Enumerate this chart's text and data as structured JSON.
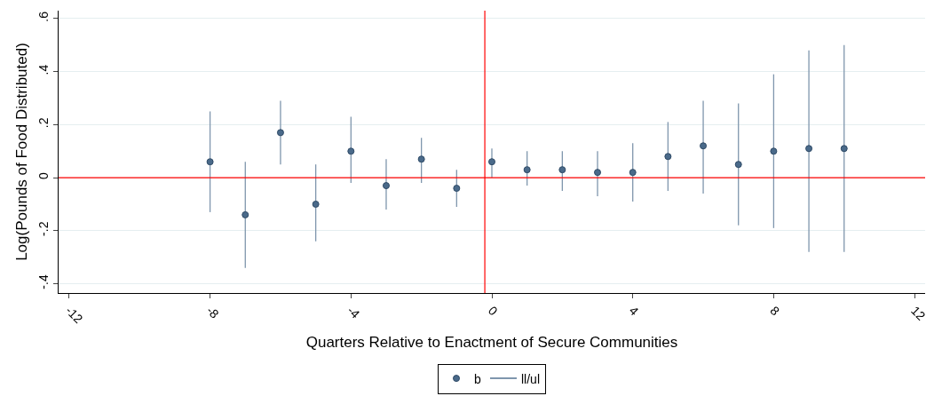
{
  "chart_data": {
    "type": "scatter",
    "xlabel": "Quarters Relative to Enactment of Secure Communities",
    "ylabel": "Log(Pounds of Food Distributed)",
    "x": [
      -8,
      -7,
      -6,
      -5,
      -4,
      -3,
      -2,
      -1,
      0,
      1,
      2,
      3,
      4,
      5,
      6,
      7,
      8,
      9,
      10
    ],
    "series": [
      {
        "name": "b",
        "color": "#4a6a8a",
        "values": [
          0.06,
          -0.14,
          0.17,
          -0.1,
          0.1,
          -0.03,
          0.07,
          -0.04,
          0.06,
          0.03,
          0.03,
          0.02,
          0.02,
          0.08,
          0.12,
          0.05,
          0.1,
          0.11,
          0.11
        ],
        "errors": [
          [
            -0.13,
            0.25
          ],
          [
            -0.34,
            0.06
          ],
          [
            0.05,
            0.29
          ],
          [
            -0.24,
            0.05
          ],
          [
            -0.02,
            0.23
          ],
          [
            -0.12,
            0.07
          ],
          [
            -0.02,
            0.15
          ],
          [
            -0.11,
            0.03
          ],
          [
            0.0,
            0.11
          ],
          [
            -0.03,
            0.1
          ],
          [
            -0.05,
            0.1
          ],
          [
            -0.07,
            0.1
          ],
          [
            -0.09,
            0.13
          ],
          [
            -0.05,
            0.21
          ],
          [
            -0.06,
            0.29
          ],
          [
            -0.18,
            0.28
          ],
          [
            -0.19,
            0.39
          ],
          [
            -0.28,
            0.48
          ],
          [
            -0.28,
            0.5
          ]
        ]
      },
      {
        "name": "ll/ul",
        "type": "line",
        "color": "#7f96ad",
        "values": [
          null,
          null,
          null,
          null,
          null,
          null,
          null,
          null,
          null,
          null,
          null,
          null,
          null,
          null,
          null,
          null,
          null,
          null,
          null
        ]
      }
    ],
    "xlim": [
      -12.3,
      12.3
    ],
    "xticks": [
      -12,
      -8,
      -4,
      0,
      4,
      8,
      12
    ],
    "ylim": [
      -0.435,
      0.63
    ],
    "yticks": [
      {
        "value": -0.4,
        "label": "-.4"
      },
      {
        "value": -0.2,
        "label": "-.2"
      },
      0,
      {
        "value": 0.2,
        "label": ".2"
      },
      {
        "value": 0.4,
        "label": ".4"
      },
      {
        "value": 0.6,
        "label": ".6"
      }
    ],
    "ref_lines": [
      {
        "axis": "y",
        "value": 0,
        "color": "#ff0000"
      },
      {
        "axis": "x",
        "value": -0.2,
        "color": "#ff0000"
      }
    ],
    "grid": "y",
    "legend": "bottom",
    "marker": "circle"
  }
}
